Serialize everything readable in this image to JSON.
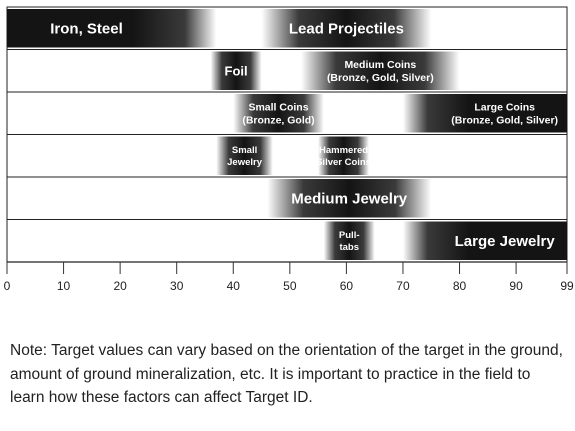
{
  "chart_data": {
    "type": "bar",
    "title": "",
    "xlabel": "",
    "ylabel": "",
    "xlim": [
      0,
      99
    ],
    "x_ticks": [
      0,
      10,
      20,
      30,
      40,
      50,
      60,
      70,
      80,
      90,
      99
    ],
    "grid": true,
    "rows": [
      {
        "segments": [
          {
            "label": [
              "Iron, Steel"
            ],
            "start": 0,
            "end": 37,
            "style": "fade-right"
          },
          {
            "label": [
              "Lead Projectiles"
            ],
            "start": 45,
            "end": 75,
            "style": "center"
          }
        ]
      },
      {
        "segments": [
          {
            "label": [
              "Foil"
            ],
            "start": 36,
            "end": 45,
            "style": "center"
          },
          {
            "label": [
              "Medium Coins",
              "(Bronze, Gold, Silver)"
            ],
            "start": 52,
            "end": 80,
            "style": "center"
          }
        ]
      },
      {
        "segments": [
          {
            "label": [
              "Small Coins",
              "(Bronze, Gold)"
            ],
            "start": 40,
            "end": 56,
            "style": "center"
          },
          {
            "label": [
              "Large Coins",
              "(Bronze, Gold, Silver)"
            ],
            "start": 70,
            "end": 99,
            "style": "fade-left"
          }
        ]
      },
      {
        "segments": [
          {
            "label": [
              "Small",
              "Jewelry"
            ],
            "start": 37,
            "end": 47,
            "style": "center"
          },
          {
            "label": [
              "Hammered",
              "Silver Coins"
            ],
            "start": 55,
            "end": 64,
            "style": "center"
          }
        ]
      },
      {
        "segments": [
          {
            "label": [
              "Medium Jewelry"
            ],
            "start": 46,
            "end": 75,
            "style": "center"
          }
        ]
      },
      {
        "segments": [
          {
            "label": [
              "Pull-",
              "tabs"
            ],
            "start": 56,
            "end": 65,
            "style": "center"
          },
          {
            "label": [
              "Large Jewelry"
            ],
            "start": 70,
            "end": 99,
            "style": "fade-left"
          }
        ]
      }
    ]
  },
  "note": "Note: Target values can vary based on the orientation of the target in the ground, amount of ground mineralization, etc.  It is important to practice in the field to learn how these factors can affect Target ID.",
  "colors": {
    "dark": "#141414",
    "mid": "#3a3a3a",
    "light": "#ffffff",
    "border": "#222222",
    "grid": "#333333"
  }
}
